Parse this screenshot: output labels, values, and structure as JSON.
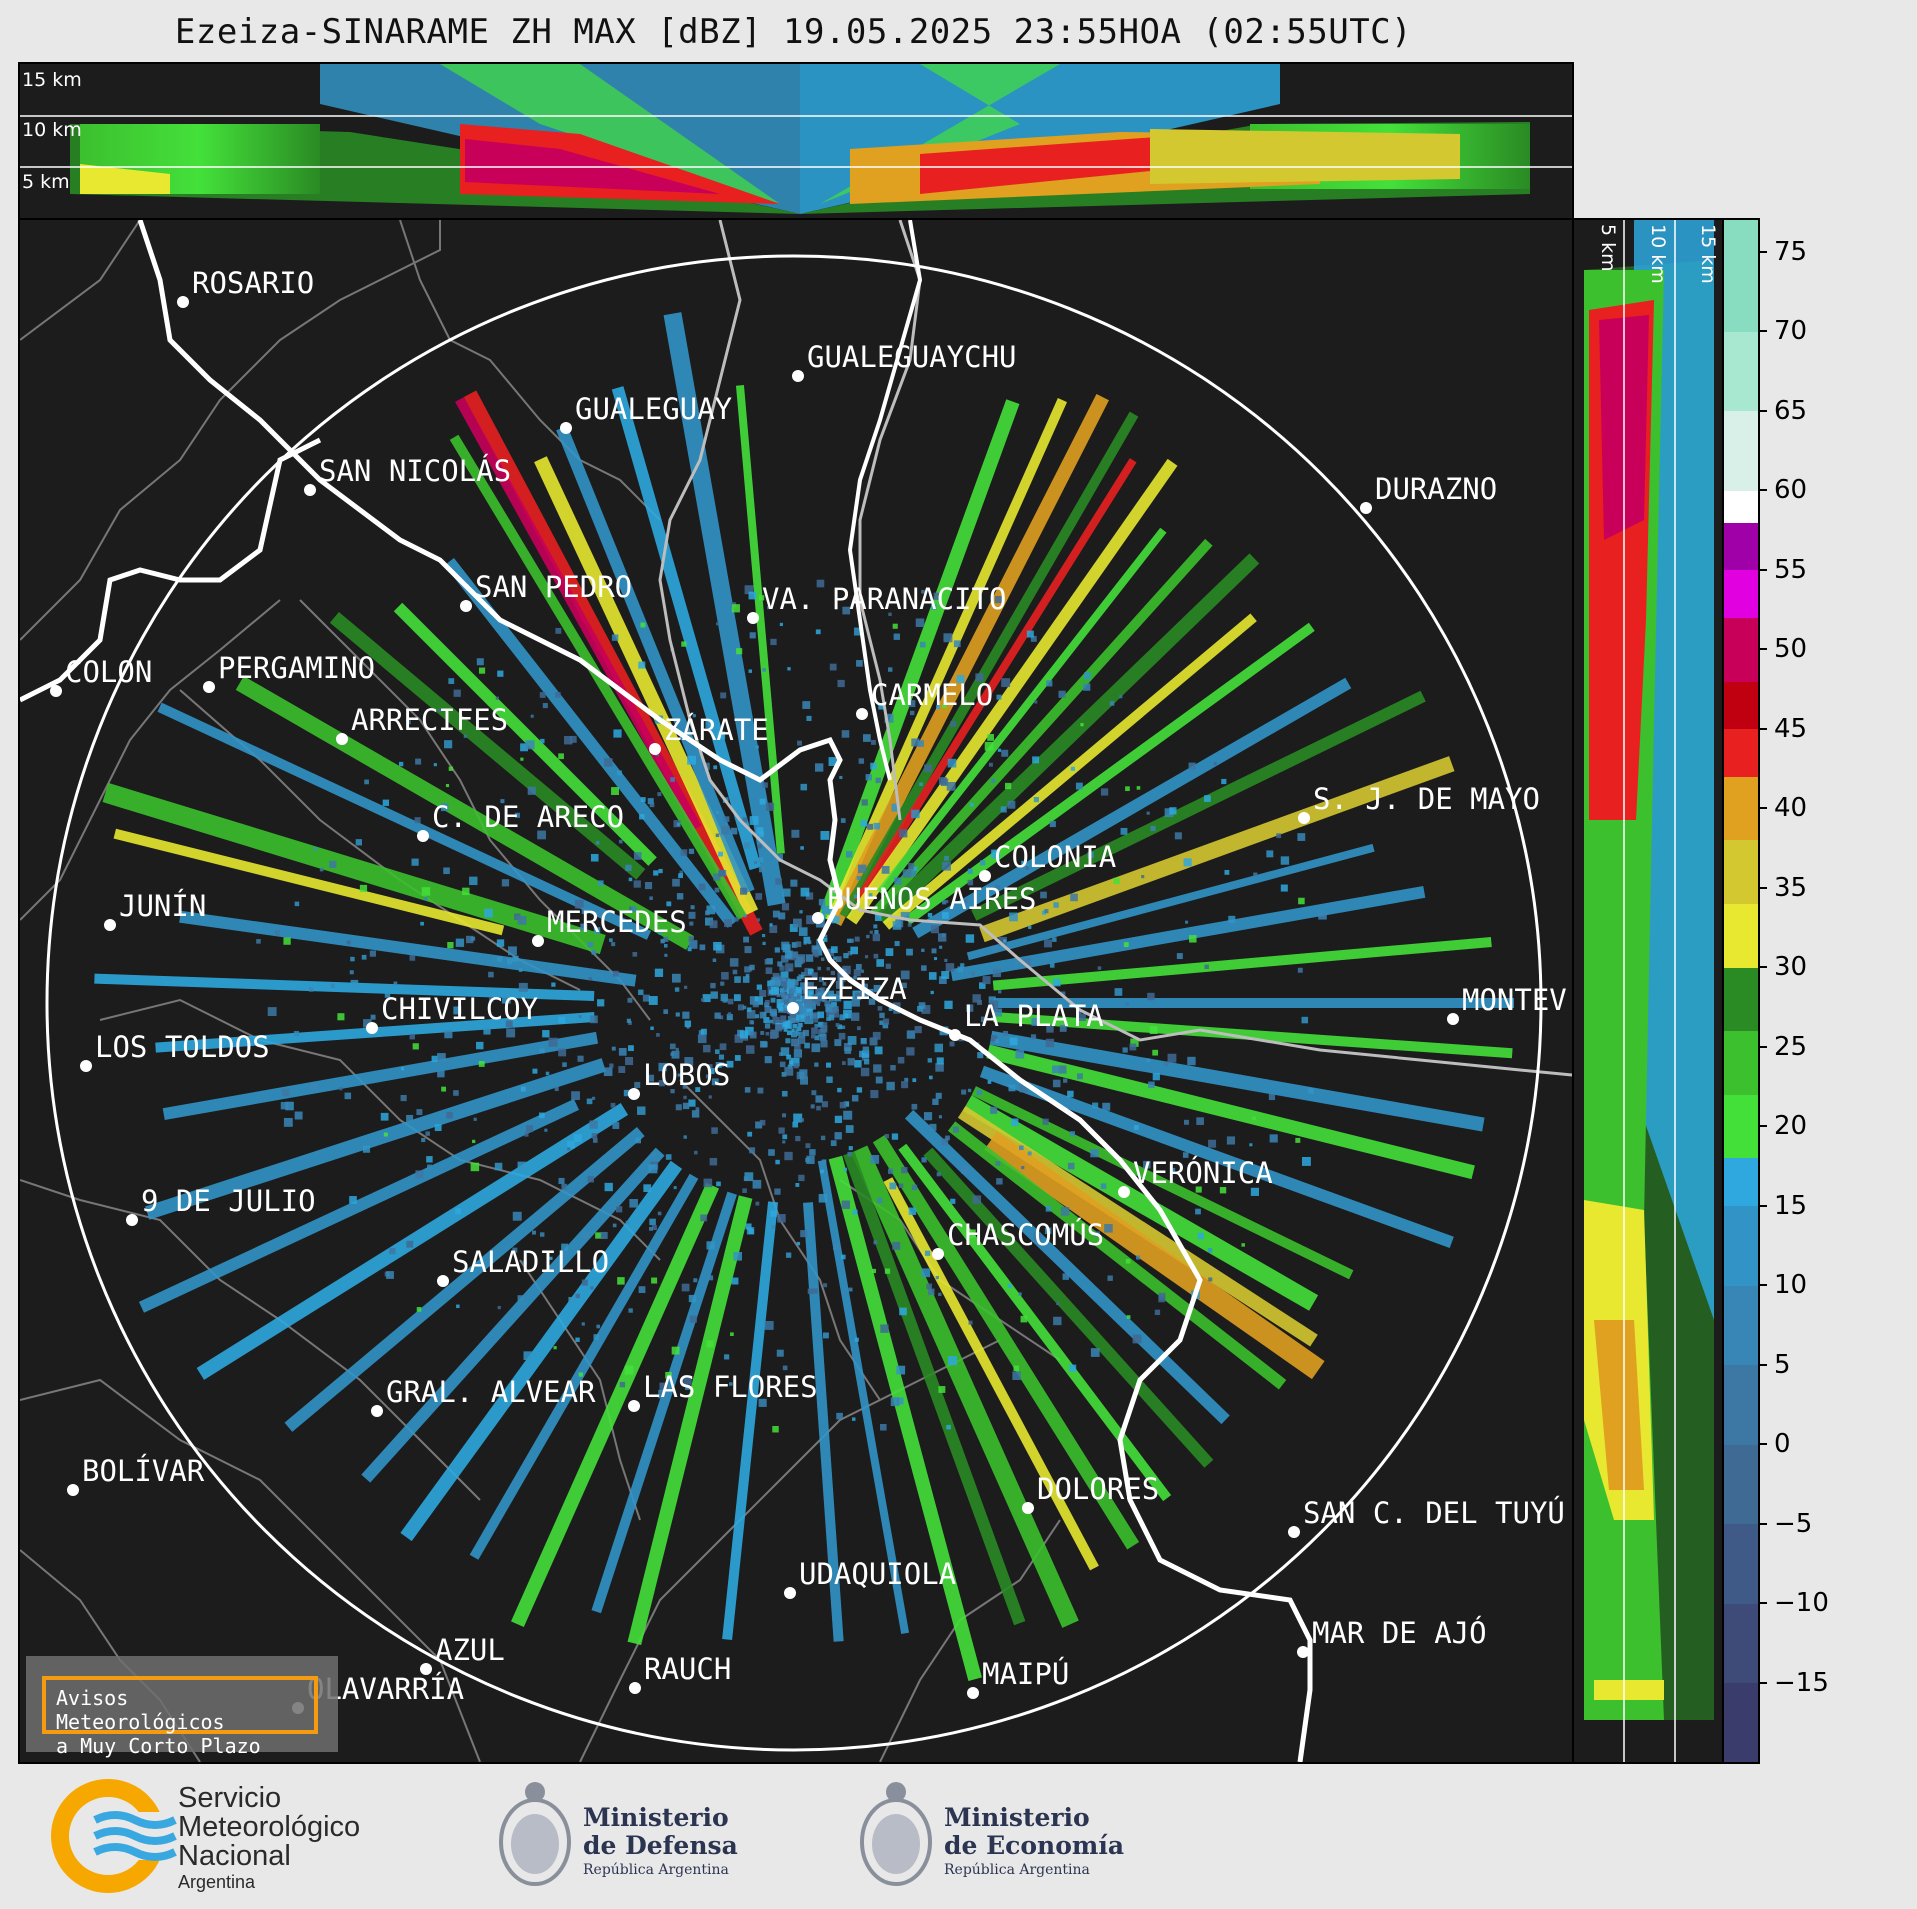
{
  "title": "Ezeiza-SINARAME ZH MAX [dBZ] 19.05.2025 23:55HOA (02:55UTC)",
  "top_panel": {
    "altitude_labels": [
      "15 km",
      "10 km",
      "5 km"
    ]
  },
  "side_panel": {
    "altitude_labels": [
      "5 km",
      "10 km",
      "15 km"
    ]
  },
  "colorbar": {
    "unit": "dBZ",
    "range": [
      -20,
      77
    ],
    "ticks": [
      "75",
      "70",
      "65",
      "60",
      "55",
      "50",
      "45",
      "40",
      "35",
      "30",
      "25",
      "20",
      "15",
      "10",
      "5",
      "0",
      "−5",
      "−10",
      "−15"
    ],
    "tick_values": [
      75,
      70,
      65,
      60,
      55,
      50,
      45,
      40,
      35,
      30,
      25,
      20,
      15,
      10,
      5,
      0,
      -5,
      -10,
      -15
    ],
    "bands": [
      {
        "from": -20,
        "to": -15,
        "color": "#3a3d6b"
      },
      {
        "from": -15,
        "to": -10,
        "color": "#3e4a78"
      },
      {
        "from": -10,
        "to": -5,
        "color": "#3f5a86"
      },
      {
        "from": -5,
        "to": 0,
        "color": "#3f6a94"
      },
      {
        "from": 0,
        "to": 5,
        "color": "#3d78a4"
      },
      {
        "from": 5,
        "to": 10,
        "color": "#3886b6"
      },
      {
        "from": 10,
        "to": 15,
        "color": "#3294c6"
      },
      {
        "from": 15,
        "to": 18,
        "color": "#2ea8de"
      },
      {
        "from": 18,
        "to": 22,
        "color": "#44e03a"
      },
      {
        "from": 22,
        "to": 26,
        "color": "#3cc02e"
      },
      {
        "from": 26,
        "to": 30,
        "color": "#2a8a24"
      },
      {
        "from": 30,
        "to": 34,
        "color": "#e8e830"
      },
      {
        "from": 34,
        "to": 38,
        "color": "#d4c830"
      },
      {
        "from": 38,
        "to": 42,
        "color": "#e0a020"
      },
      {
        "from": 42,
        "to": 45,
        "color": "#e82020"
      },
      {
        "from": 45,
        "to": 48,
        "color": "#c00010"
      },
      {
        "from": 48,
        "to": 52,
        "color": "#c8005a"
      },
      {
        "from": 52,
        "to": 55,
        "color": "#e000e0"
      },
      {
        "from": 55,
        "to": 58,
        "color": "#a000a8"
      },
      {
        "from": 58,
        "to": 60,
        "color": "#ffffff"
      },
      {
        "from": 60,
        "to": 65,
        "color": "#d8f0e8"
      },
      {
        "from": 65,
        "to": 70,
        "color": "#a8e8d0"
      },
      {
        "from": 70,
        "to": 77,
        "color": "#88dcc0"
      }
    ]
  },
  "map": {
    "radar_site": "EZEIZA",
    "cities": [
      {
        "name": "ROSARIO"
      },
      {
        "name": "GUALEGUAYCHU"
      },
      {
        "name": "GUALEGUAY"
      },
      {
        "name": "SAN NICOLÁS"
      },
      {
        "name": "DURAZNO"
      },
      {
        "name": "SAN PEDRO"
      },
      {
        "name": "VA. PARANACITO"
      },
      {
        "name": "COLON"
      },
      {
        "name": "PERGAMINO"
      },
      {
        "name": "CARMELO"
      },
      {
        "name": "ARRECIFES"
      },
      {
        "name": "ZÁRATE"
      },
      {
        "name": "S. J. DE MAYO"
      },
      {
        "name": "C. DE ARECO"
      },
      {
        "name": "COLONIA"
      },
      {
        "name": "JUNÍN"
      },
      {
        "name": "BUENOS AIRES"
      },
      {
        "name": "MERCEDES"
      },
      {
        "name": "MONTEV"
      },
      {
        "name": "EZEIZA"
      },
      {
        "name": "CHIVILCOY"
      },
      {
        "name": "LA PLATA"
      },
      {
        "name": "LOS TOLDOS"
      },
      {
        "name": "LOBOS"
      },
      {
        "name": "VERÓNICA"
      },
      {
        "name": "9 DE JULIO"
      },
      {
        "name": "CHASCOMÚS"
      },
      {
        "name": "SALADILLO"
      },
      {
        "name": "GRAL. ALVEAR"
      },
      {
        "name": "LAS FLORES"
      },
      {
        "name": "BOLÍVAR"
      },
      {
        "name": "DOLORES"
      },
      {
        "name": "SAN C. DEL TUYÚ"
      },
      {
        "name": "UDAQUIOLA"
      },
      {
        "name": "MAR DE AJÓ"
      },
      {
        "name": "AZUL"
      },
      {
        "name": "RAUCH"
      },
      {
        "name": "MAIPÚ"
      },
      {
        "name": "OLAVARRÍA"
      }
    ]
  },
  "warning_box": {
    "text": "Avisos Meteorológicos\na Muy Corto Plazo",
    "border_color": "#f39c12"
  },
  "logos": {
    "smn": {
      "line1": "Servicio",
      "line2": "Meteorológico",
      "line3": "Nacional",
      "line4": "Argentina"
    },
    "defensa": {
      "line1": "Ministerio",
      "line2": "de Defensa",
      "line3": "República Argentina"
    },
    "economia": {
      "line1": "Ministerio",
      "line2": "de Economía",
      "line3": "República Argentina"
    }
  }
}
